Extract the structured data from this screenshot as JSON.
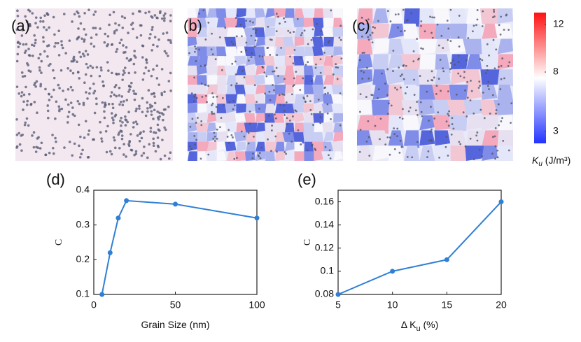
{
  "panels": [
    "(a)",
    "(b)",
    "(c)"
  ],
  "colorbar": {
    "lim": [
      2,
      13
    ],
    "ticks": [
      3,
      8,
      12
    ],
    "label_symbol": "K",
    "label_sub": "u",
    "label_unit": " (J/m³)"
  },
  "chart_data": [
    {
      "type": "line",
      "title": "(d)",
      "x_label": "Grain Size (nm)",
      "y_label": "C",
      "x": [
        5,
        10,
        15,
        20,
        50,
        100
      ],
      "series": [
        {
          "color": "#2f7fd6",
          "values": [
            0.1,
            0.22,
            0.32,
            0.37,
            0.36,
            0.32
          ]
        }
      ],
      "xlim": [
        0,
        100
      ],
      "xticks": [
        0,
        50,
        100
      ],
      "ylim": [
        0.1,
        0.4
      ],
      "yticks": [
        0.1,
        0.2,
        0.3,
        0.4
      ]
    },
    {
      "type": "line",
      "title": "(e)",
      "x_label": "Δ K",
      "x_label_sub": "u",
      "x_label_unit": " (%)",
      "y_label": "C",
      "x": [
        5,
        10,
        15,
        20
      ],
      "series": [
        {
          "color": "#2f7fd6",
          "values": [
            0.08,
            0.1,
            0.11,
            0.16
          ]
        }
      ],
      "xlim": [
        5,
        20
      ],
      "xticks": [
        5,
        10,
        15,
        20
      ],
      "ylim": [
        0.08,
        0.17
      ],
      "yticks": [
        0.08,
        0.1,
        0.12,
        0.14,
        0.16
      ]
    }
  ]
}
